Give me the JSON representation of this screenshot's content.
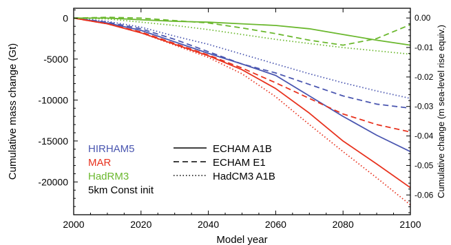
{
  "chart_data": {
    "type": "line",
    "xlabel": "Model year",
    "ylabel": "Cumulative mass change (Gt)",
    "y2label": "Cumulative change (m sea-level rise equiv.)",
    "xlim": [
      2000,
      2100
    ],
    "ylim": [
      -24000,
      1200
    ],
    "y2lim": [
      -0.0667,
      0.0033
    ],
    "x_ticks": [
      2000,
      2020,
      2040,
      2060,
      2080,
      2100
    ],
    "y_ticks": [
      0,
      -5000,
      -10000,
      -15000,
      -20000
    ],
    "y_tick_labels": [
      "0",
      "-5000",
      "-10000",
      "-15000",
      "-20000"
    ],
    "y2_ticks": [
      0.0,
      -0.01,
      -0.02,
      -0.03,
      -0.04,
      -0.05,
      -0.06
    ],
    "y2_tick_labels": [
      "0.00",
      "-0.01",
      "-0.02",
      "-0.03",
      "-0.04",
      "-0.05",
      "-0.06"
    ],
    "grid": false,
    "colors": {
      "HIRHAM5": "#4a56b0",
      "MAR": "#e8321e",
      "HadRM3": "#6bb82e"
    },
    "legend": {
      "models": [
        {
          "label": "HIRHAM5",
          "color": "#4a56b0"
        },
        {
          "label": "MAR",
          "color": "#e8321e"
        },
        {
          "label": "HadRM3",
          "color": "#6bb82e"
        },
        {
          "label": "5km Const init",
          "color": "#000000"
        }
      ],
      "scenarios": [
        {
          "label": "ECHAM A1B",
          "dash": "solid"
        },
        {
          "label": "ECHAM E1",
          "dash": "dashed"
        },
        {
          "label": "HadCM3 A1B",
          "dash": "dotted"
        }
      ]
    },
    "x": [
      2000,
      2010,
      2020,
      2030,
      2040,
      2050,
      2060,
      2070,
      2080,
      2090,
      2100
    ],
    "series": [
      {
        "model": "HIRHAM5",
        "scenario": "ECHAM A1B",
        "color": "#4a56b0",
        "dash": "solid",
        "values": [
          0,
          -600,
          -1500,
          -2900,
          -4300,
          -5600,
          -7000,
          -9500,
          -12000,
          -14300,
          -16300
        ]
      },
      {
        "model": "HIRHAM5",
        "scenario": "ECHAM E1",
        "color": "#4a56b0",
        "dash": "dashed",
        "values": [
          0,
          -500,
          -1300,
          -2600,
          -4100,
          -5600,
          -6700,
          -8100,
          -9500,
          -10500,
          -11000
        ]
      },
      {
        "model": "HIRHAM5",
        "scenario": "HadCM3 A1B",
        "color": "#4a56b0",
        "dash": "dotted",
        "values": [
          0,
          -400,
          -1100,
          -2200,
          -3200,
          -4400,
          -5600,
          -6800,
          -7900,
          -8900,
          -9800
        ]
      },
      {
        "model": "MAR",
        "scenario": "ECHAM A1B",
        "color": "#e8321e",
        "dash": "solid",
        "values": [
          0,
          -700,
          -1800,
          -3200,
          -4600,
          -6300,
          -8600,
          -11600,
          -15000,
          -17800,
          -20700
        ]
      },
      {
        "model": "MAR",
        "scenario": "ECHAM E1",
        "color": "#e8321e",
        "dash": "dashed",
        "values": [
          0,
          -700,
          -1700,
          -3100,
          -4500,
          -6100,
          -7900,
          -9800,
          -11700,
          -13000,
          -13900
        ]
      },
      {
        "model": "MAR",
        "scenario": "HadCM3 A1B",
        "color": "#e8321e",
        "dash": "dotted",
        "values": [
          0,
          -700,
          -1800,
          -3300,
          -4800,
          -6800,
          -9600,
          -13000,
          -16300,
          -19500,
          -22800
        ]
      },
      {
        "model": "HadRM3",
        "scenario": "ECHAM A1B",
        "color": "#6bb82e",
        "dash": "solid",
        "values": [
          0,
          0,
          -200,
          -400,
          -500,
          -700,
          -900,
          -1300,
          -2000,
          -2700,
          -3300
        ]
      },
      {
        "model": "HadRM3",
        "scenario": "ECHAM E1",
        "color": "#6bb82e",
        "dash": "dashed",
        "values": [
          0,
          100,
          0,
          -300,
          -600,
          -1200,
          -1900,
          -2700,
          -3300,
          -2500,
          -800
        ]
      },
      {
        "model": "HadRM3",
        "scenario": "HadCM3 A1B",
        "color": "#6bb82e",
        "dash": "dotted",
        "values": [
          0,
          -100,
          -500,
          -900,
          -1400,
          -2000,
          -2600,
          -3100,
          -3600,
          -4000,
          -4400
        ]
      }
    ]
  }
}
